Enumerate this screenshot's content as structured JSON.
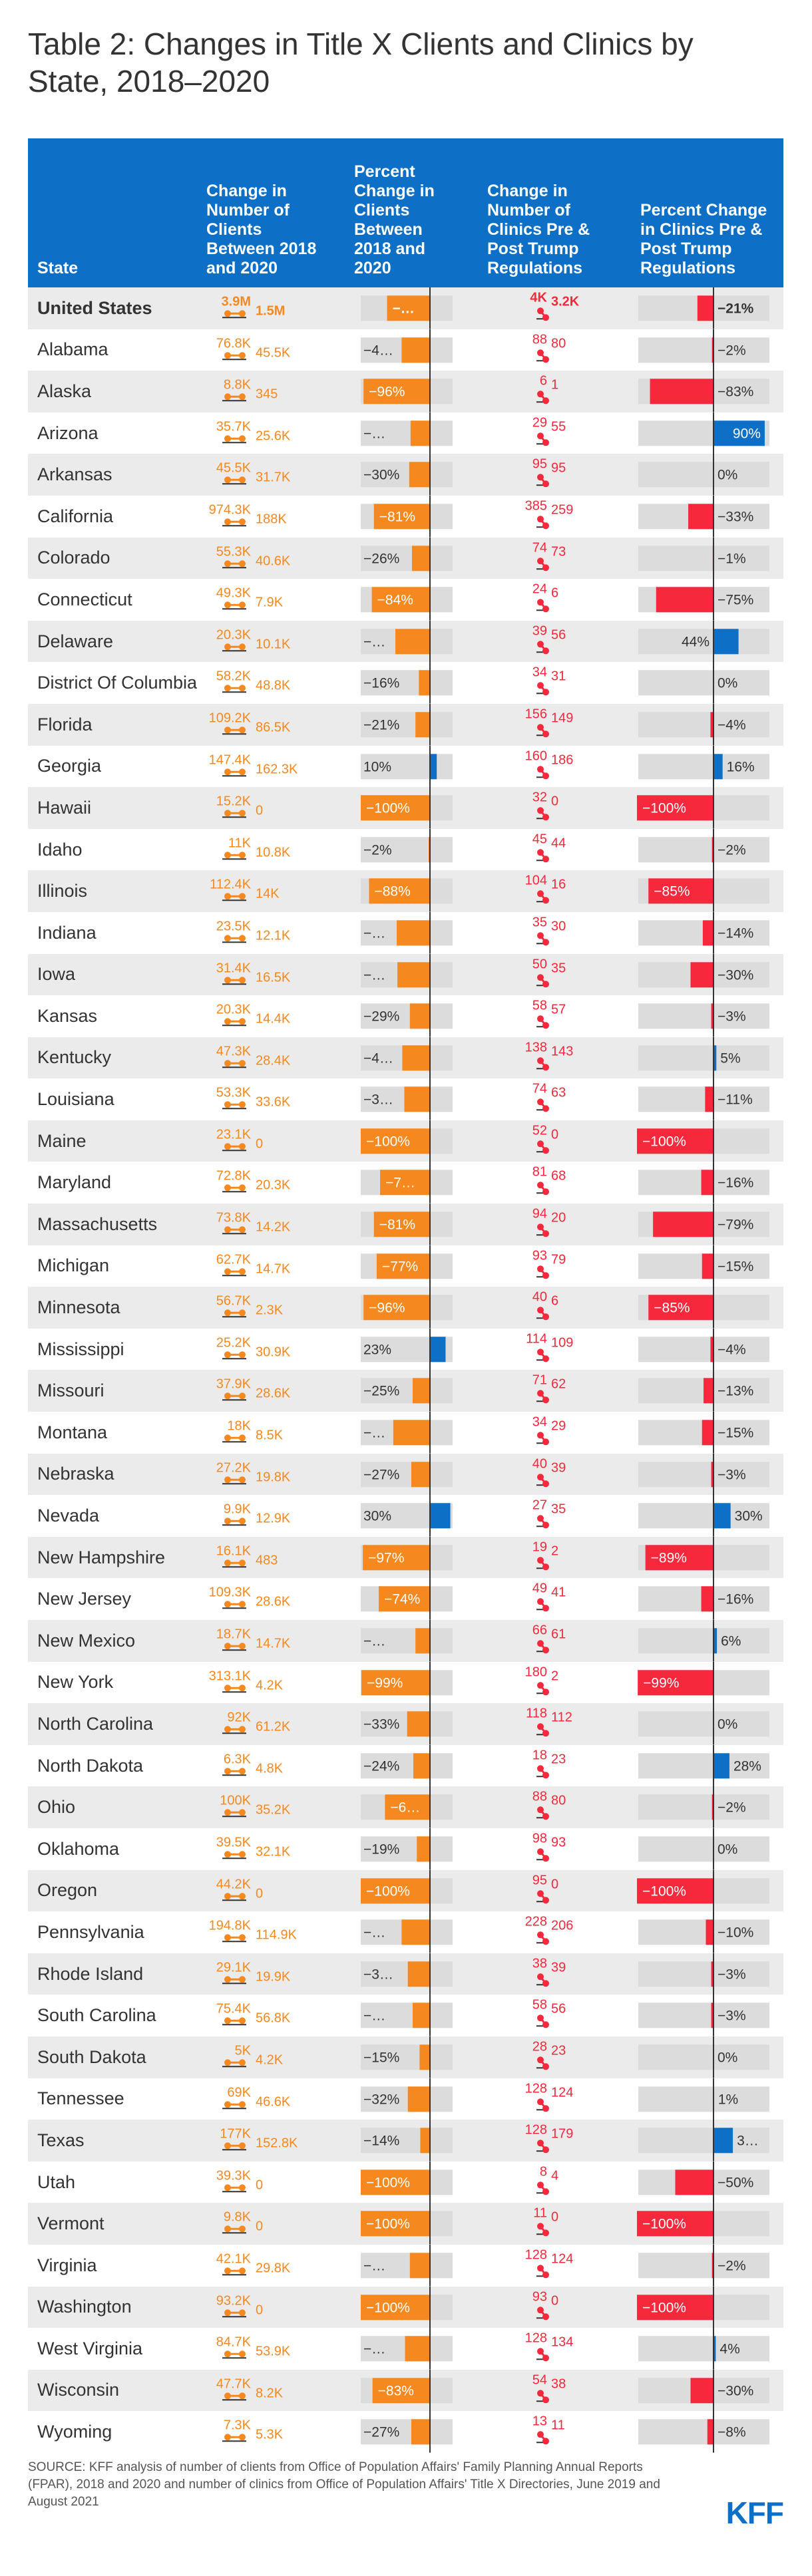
{
  "title": "Table 2: Changes in Title X Clients and Clinics by State, 2018–2020",
  "headers": {
    "state": "State",
    "clients_change": "Change in Number of Clients Between 2018 and 2020",
    "clients_pct": "Percent Change in Clients Between 2018 and 2020",
    "clinics_change": "Change in Number of Clinics Pre & Post Trump Regulations",
    "clinics_pct": "Percent Change in Clinics Pre & Post Trump Regulations"
  },
  "colors": {
    "header_bg": "#0d6fc6",
    "orange": "#f5891f",
    "blue": "#0d6fc6",
    "red": "#f5283c",
    "shade": "#ebebeb",
    "bar_bg": "#dcdcdc"
  },
  "chart_data": {
    "type": "table",
    "columns": [
      "State",
      "Clients 2018",
      "Clients 2020",
      "Clients % change label",
      "Clinics pre",
      "Clinics post",
      "Clinics % change label"
    ],
    "rows": [
      {
        "state": "United States",
        "c18": "3.9M",
        "c20": "1.5M",
        "cpct": "−…",
        "k1": "4K",
        "k2": "3.2K",
        "kpct": "−21%"
      },
      {
        "state": "Alabama",
        "c18": "76.8K",
        "c20": "45.5K",
        "cpct": "−4…",
        "k1": "88",
        "k2": "80",
        "kpct": "−2%"
      },
      {
        "state": "Alaska",
        "c18": "8.8K",
        "c20": "345",
        "cpct": "−96%",
        "k1": "6",
        "k2": "1",
        "kpct": "−83%"
      },
      {
        "state": "Arizona",
        "c18": "35.7K",
        "c20": "25.6K",
        "cpct": "−…",
        "k1": "29",
        "k2": "55",
        "kpct": "90%"
      },
      {
        "state": "Arkansas",
        "c18": "45.5K",
        "c20": "31.7K",
        "cpct": "−30%",
        "k1": "95",
        "k2": "95",
        "kpct": "0%"
      },
      {
        "state": "California",
        "c18": "974.3K",
        "c20": "188K",
        "cpct": "−81%",
        "k1": "385",
        "k2": "259",
        "kpct": "−33%"
      },
      {
        "state": "Colorado",
        "c18": "55.3K",
        "c20": "40.6K",
        "cpct": "−26%",
        "k1": "74",
        "k2": "73",
        "kpct": "−1%"
      },
      {
        "state": "Connecticut",
        "c18": "49.3K",
        "c20": "7.9K",
        "cpct": "−84%",
        "k1": "24",
        "k2": "6",
        "kpct": "−75%"
      },
      {
        "state": "Delaware",
        "c18": "20.3K",
        "c20": "10.1K",
        "cpct": "−…",
        "k1": "39",
        "k2": "56",
        "kpct": "44%"
      },
      {
        "state": "District Of Columbia",
        "c18": "58.2K",
        "c20": "48.8K",
        "cpct": "−16%",
        "k1": "34",
        "k2": "31",
        "kpct": "0%"
      },
      {
        "state": "Florida",
        "c18": "109.2K",
        "c20": "86.5K",
        "cpct": "−21%",
        "k1": "156",
        "k2": "149",
        "kpct": "−4%"
      },
      {
        "state": "Georgia",
        "c18": "147.4K",
        "c20": "162.3K",
        "cpct": "10%",
        "k1": "160",
        "k2": "186",
        "kpct": "16%"
      },
      {
        "state": "Hawaii",
        "c18": "15.2K",
        "c20": "0",
        "cpct": "−100%",
        "k1": "32",
        "k2": "0",
        "kpct": "−100%"
      },
      {
        "state": "Idaho",
        "c18": "11K",
        "c20": "10.8K",
        "cpct": "−2%",
        "k1": "45",
        "k2": "44",
        "kpct": "−2%"
      },
      {
        "state": "Illinois",
        "c18": "112.4K",
        "c20": "14K",
        "cpct": "−88%",
        "k1": "104",
        "k2": "16",
        "kpct": "−85%"
      },
      {
        "state": "Indiana",
        "c18": "23.5K",
        "c20": "12.1K",
        "cpct": "−…",
        "k1": "35",
        "k2": "30",
        "kpct": "−14%"
      },
      {
        "state": "Iowa",
        "c18": "31.4K",
        "c20": "16.5K",
        "cpct": "−…",
        "k1": "50",
        "k2": "35",
        "kpct": "−30%"
      },
      {
        "state": "Kansas",
        "c18": "20.3K",
        "c20": "14.4K",
        "cpct": "−29%",
        "k1": "58",
        "k2": "57",
        "kpct": "−3%"
      },
      {
        "state": "Kentucky",
        "c18": "47.3K",
        "c20": "28.4K",
        "cpct": "−4…",
        "k1": "138",
        "k2": "143",
        "kpct": "5%"
      },
      {
        "state": "Louisiana",
        "c18": "53.3K",
        "c20": "33.6K",
        "cpct": "−3…",
        "k1": "74",
        "k2": "63",
        "kpct": "−11%"
      },
      {
        "state": "Maine",
        "c18": "23.1K",
        "c20": "0",
        "cpct": "−100%",
        "k1": "52",
        "k2": "0",
        "kpct": "−100%"
      },
      {
        "state": "Maryland",
        "c18": "72.8K",
        "c20": "20.3K",
        "cpct": "−7…",
        "k1": "81",
        "k2": "68",
        "kpct": "−16%"
      },
      {
        "state": "Massachusetts",
        "c18": "73.8K",
        "c20": "14.2K",
        "cpct": "−81%",
        "k1": "94",
        "k2": "20",
        "kpct": "−79%"
      },
      {
        "state": "Michigan",
        "c18": "62.7K",
        "c20": "14.7K",
        "cpct": "−77%",
        "k1": "93",
        "k2": "79",
        "kpct": "−15%"
      },
      {
        "state": "Minnesota",
        "c18": "56.7K",
        "c20": "2.3K",
        "cpct": "−96%",
        "k1": "40",
        "k2": "6",
        "kpct": "−85%"
      },
      {
        "state": "Mississippi",
        "c18": "25.2K",
        "c20": "30.9K",
        "cpct": "23%",
        "k1": "114",
        "k2": "109",
        "kpct": "−4%"
      },
      {
        "state": "Missouri",
        "c18": "37.9K",
        "c20": "28.6K",
        "cpct": "−25%",
        "k1": "71",
        "k2": "62",
        "kpct": "−13%"
      },
      {
        "state": "Montana",
        "c18": "18K",
        "c20": "8.5K",
        "cpct": "−…",
        "k1": "34",
        "k2": "29",
        "kpct": "−15%"
      },
      {
        "state": "Nebraska",
        "c18": "27.2K",
        "c20": "19.8K",
        "cpct": "−27%",
        "k1": "40",
        "k2": "39",
        "kpct": "−3%"
      },
      {
        "state": "Nevada",
        "c18": "9.9K",
        "c20": "12.9K",
        "cpct": "30%",
        "k1": "27",
        "k2": "35",
        "kpct": "30%"
      },
      {
        "state": "New Hampshire",
        "c18": "16.1K",
        "c20": "483",
        "cpct": "−97%",
        "k1": "19",
        "k2": "2",
        "kpct": "−89%"
      },
      {
        "state": "New Jersey",
        "c18": "109.3K",
        "c20": "28.6K",
        "cpct": "−74%",
        "k1": "49",
        "k2": "41",
        "kpct": "−16%"
      },
      {
        "state": "New Mexico",
        "c18": "18.7K",
        "c20": "14.7K",
        "cpct": "−…",
        "k1": "66",
        "k2": "61",
        "kpct": "6%"
      },
      {
        "state": "New York",
        "c18": "313.1K",
        "c20": "4.2K",
        "cpct": "−99%",
        "k1": "180",
        "k2": "2",
        "kpct": "−99%"
      },
      {
        "state": "North Carolina",
        "c18": "92K",
        "c20": "61.2K",
        "cpct": "−33%",
        "k1": "118",
        "k2": "112",
        "kpct": "0%"
      },
      {
        "state": "North Dakota",
        "c18": "6.3K",
        "c20": "4.8K",
        "cpct": "−24%",
        "k1": "18",
        "k2": "23",
        "kpct": "28%"
      },
      {
        "state": "Ohio",
        "c18": "100K",
        "c20": "35.2K",
        "cpct": "−6…",
        "k1": "88",
        "k2": "80",
        "kpct": "−2%"
      },
      {
        "state": "Oklahoma",
        "c18": "39.5K",
        "c20": "32.1K",
        "cpct": "−19%",
        "k1": "98",
        "k2": "93",
        "kpct": "0%"
      },
      {
        "state": "Oregon",
        "c18": "44.2K",
        "c20": "0",
        "cpct": "−100%",
        "k1": "95",
        "k2": "0",
        "kpct": "−100%"
      },
      {
        "state": "Pennsylvania",
        "c18": "194.8K",
        "c20": "114.9K",
        "cpct": "−…",
        "k1": "228",
        "k2": "206",
        "kpct": "−10%"
      },
      {
        "state": "Rhode Island",
        "c18": "29.1K",
        "c20": "19.9K",
        "cpct": "−3…",
        "k1": "38",
        "k2": "39",
        "kpct": "−3%"
      },
      {
        "state": "South Carolina",
        "c18": "75.4K",
        "c20": "56.8K",
        "cpct": "−…",
        "k1": "58",
        "k2": "56",
        "kpct": "−3%"
      },
      {
        "state": "South Dakota",
        "c18": "5K",
        "c20": "4.2K",
        "cpct": "−15%",
        "k1": "28",
        "k2": "23",
        "kpct": "0%"
      },
      {
        "state": "Tennessee",
        "c18": "69K",
        "c20": "46.6K",
        "cpct": "−32%",
        "k1": "128",
        "k2": "124",
        "kpct": "1%"
      },
      {
        "state": "Texas",
        "c18": "177K",
        "c20": "152.8K",
        "cpct": "−14%",
        "k1": "128",
        "k2": "179",
        "kpct": "3…"
      },
      {
        "state": "Utah",
        "c18": "39.3K",
        "c20": "0",
        "cpct": "−100%",
        "k1": "8",
        "k2": "4",
        "kpct": "−50%"
      },
      {
        "state": "Vermont",
        "c18": "9.8K",
        "c20": "0",
        "cpct": "−100%",
        "k1": "11",
        "k2": "0",
        "kpct": "−100%"
      },
      {
        "state": "Virginia",
        "c18": "42.1K",
        "c20": "29.8K",
        "cpct": "−…",
        "k1": "128",
        "k2": "124",
        "kpct": "−2%"
      },
      {
        "state": "Washington",
        "c18": "93.2K",
        "c20": "0",
        "cpct": "−100%",
        "k1": "93",
        "k2": "0",
        "kpct": "−100%"
      },
      {
        "state": "West Virginia",
        "c18": "84.7K",
        "c20": "53.9K",
        "cpct": "−…",
        "k1": "128",
        "k2": "134",
        "kpct": "4%"
      },
      {
        "state": "Wisconsin",
        "c18": "47.7K",
        "c20": "8.2K",
        "cpct": "−83%",
        "k1": "54",
        "k2": "38",
        "kpct": "−30%"
      },
      {
        "state": "Wyoming",
        "c18": "7.3K",
        "c20": "5.3K",
        "cpct": "−27%",
        "k1": "13",
        "k2": "11",
        "kpct": "−8%"
      }
    ],
    "clients_pct_values": [
      -62,
      -41,
      -96,
      -28,
      -30,
      -81,
      -26,
      -84,
      -50,
      -16,
      -21,
      10,
      -100,
      -2,
      -88,
      -48,
      -47,
      -29,
      -40,
      -37,
      -100,
      -72,
      -81,
      -77,
      -96,
      23,
      -25,
      -53,
      -27,
      30,
      -97,
      -74,
      -21,
      -99,
      -33,
      -24,
      -65,
      -19,
      -100,
      -41,
      -32,
      -25,
      -15,
      -32,
      -14,
      -100,
      -100,
      -29,
      -100,
      -36,
      -83,
      -27
    ],
    "clinics_pct_values": [
      -21,
      -2,
      -83,
      90,
      0,
      -33,
      -1,
      -75,
      44,
      0,
      -4,
      16,
      -100,
      -2,
      -85,
      -14,
      -30,
      -3,
      5,
      -11,
      -100,
      -16,
      -79,
      -15,
      -85,
      -4,
      -13,
      -15,
      -3,
      30,
      -89,
      -16,
      6,
      -99,
      0,
      28,
      -2,
      0,
      -100,
      -10,
      -3,
      -3,
      0,
      1,
      34,
      -50,
      -100,
      -2,
      -100,
      4,
      -30,
      -8
    ]
  },
  "footer": {
    "source": "SOURCE: KFF analysis of number of clients from Office of Population Affairs' Family Planning Annual Reports (FPAR), 2018 and 2020 and number of clinics from Office of Population Affairs' Title X Directories, June 2019 and August 2021",
    "logo": "KFF"
  }
}
